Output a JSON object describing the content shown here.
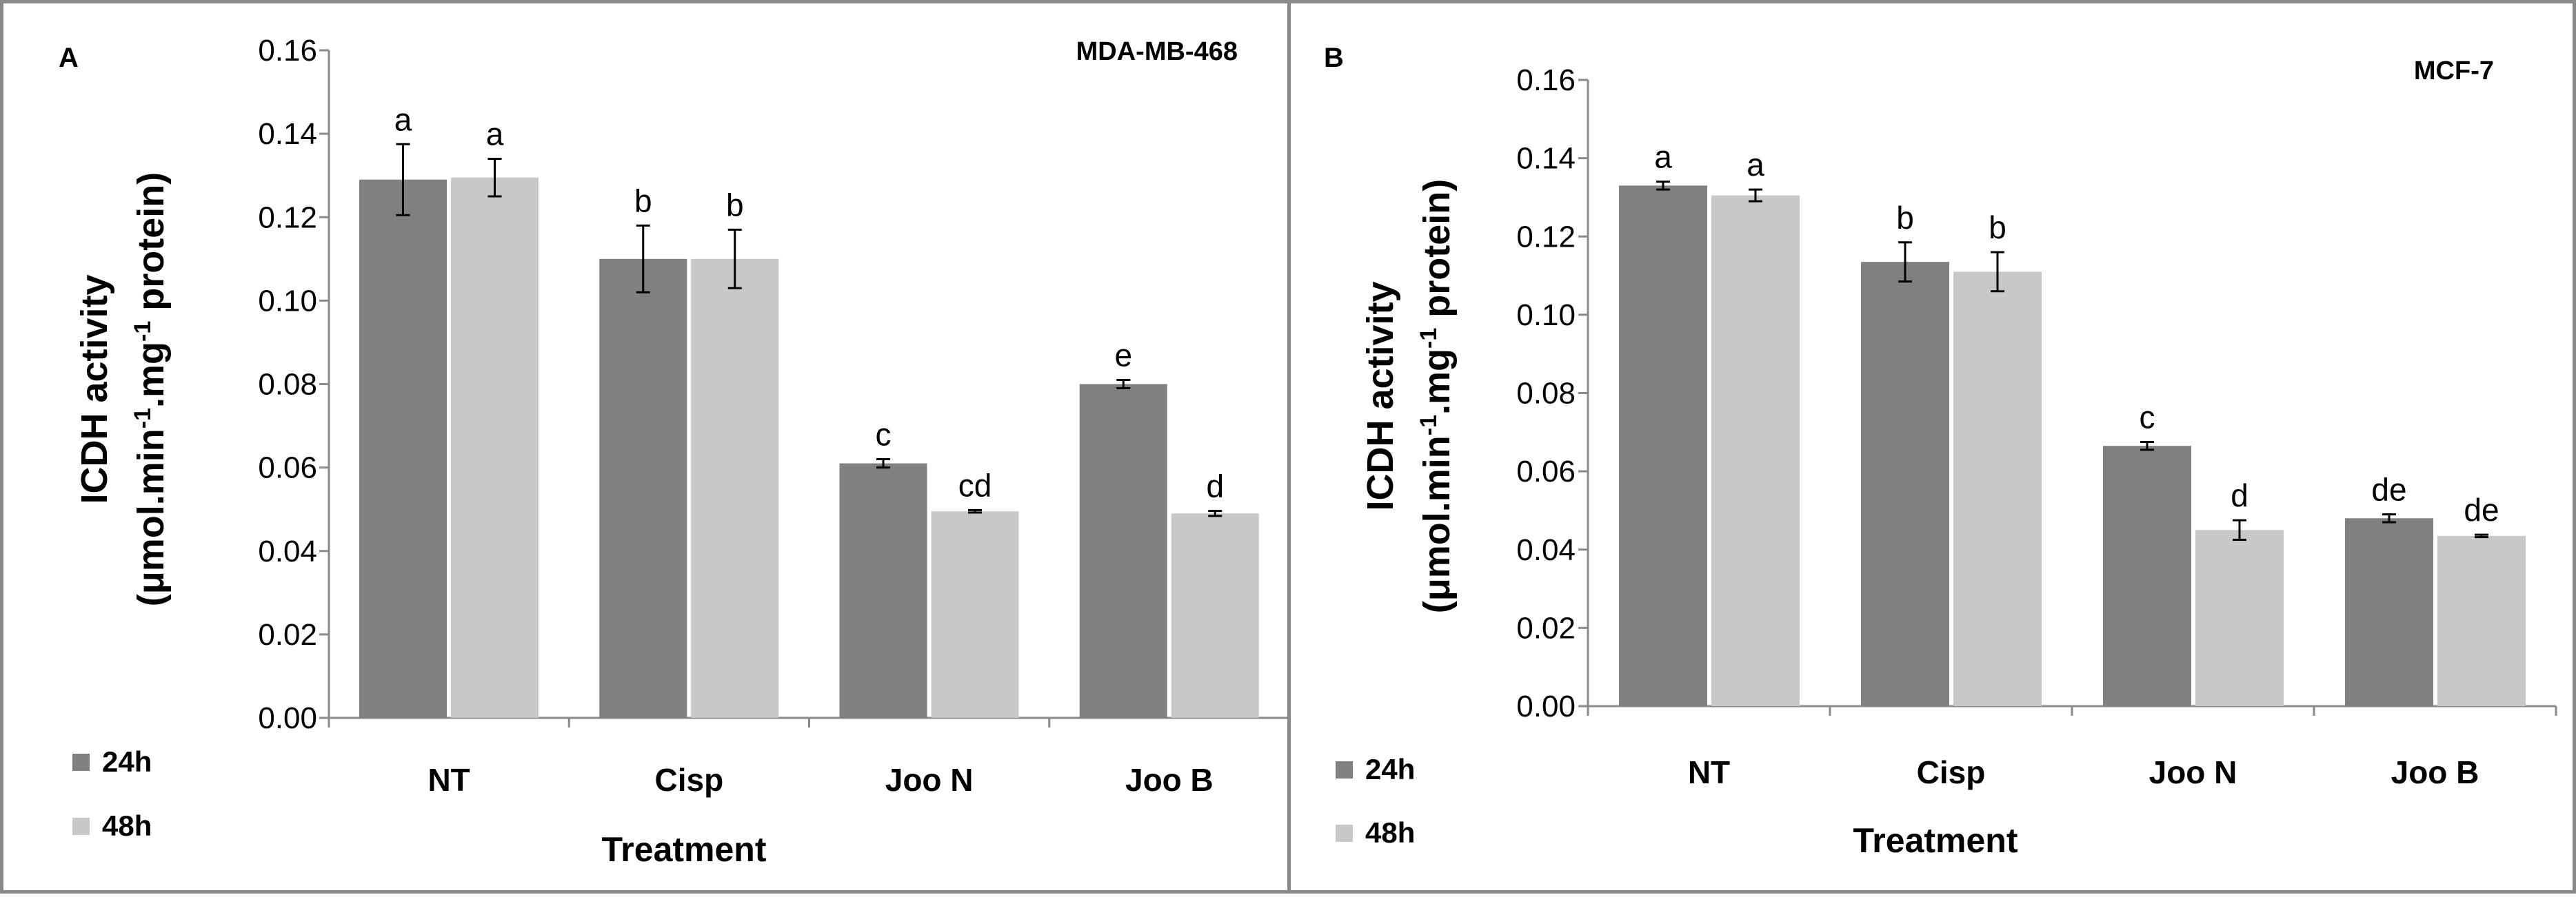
{
  "panels": [
    {
      "letter": "A",
      "title": "MDA-MB-468",
      "ylabel_line1": "ICDH activity",
      "ylabel_line2": "(μmol.min-1.mg-1 protein)",
      "xlabel": "Treatment",
      "y_ticks": [
        "0.00",
        "0.02",
        "0.04",
        "0.06",
        "0.08",
        "0.10",
        "0.12",
        "0.14",
        "0.16"
      ],
      "legend": [
        {
          "label": "24h",
          "color": "#808080"
        },
        {
          "label": "48h",
          "color": "#c8c8c8"
        }
      ]
    },
    {
      "letter": "B",
      "title": "MCF-7",
      "ylabel_line1": "ICDH activity",
      "ylabel_line2": "(μmol.min-1.mg-1 protein)",
      "xlabel": "Treatment",
      "y_ticks": [
        "0.00",
        "0.02",
        "0.04",
        "0.06",
        "0.08",
        "0.10",
        "0.12",
        "0.14",
        "0.16"
      ],
      "legend": [
        {
          "label": "24h",
          "color": "#808080"
        },
        {
          "label": "48h",
          "color": "#c8c8c8"
        }
      ]
    }
  ],
  "chart_data": [
    {
      "type": "bar",
      "title": "MDA-MB-468",
      "xlabel": "Treatment",
      "ylabel": "ICDH activity (μmol.min-1.mg-1 protein)",
      "ylim": [
        0,
        0.16
      ],
      "categories": [
        "NT",
        "Cisp",
        "Joo N",
        "Joo B"
      ],
      "series": [
        {
          "name": "24h",
          "color": "#808080",
          "values": [
            0.129,
            0.11,
            0.061,
            0.08
          ],
          "errors": [
            0.0085,
            0.008,
            0.001,
            0.001
          ],
          "letters": [
            "a",
            "b",
            "c",
            "e"
          ]
        },
        {
          "name": "48h",
          "color": "#c8c8c8",
          "values": [
            0.1295,
            0.11,
            0.0495,
            0.049
          ],
          "errors": [
            0.0045,
            0.007,
            0.0003,
            0.0006
          ],
          "letters": [
            "a",
            "b",
            "cd",
            "d"
          ]
        }
      ]
    },
    {
      "type": "bar",
      "title": "MCF-7",
      "xlabel": "Treatment",
      "ylabel": "ICDH activity (μmol.min-1.mg-1 protein)",
      "ylim": [
        0,
        0.16
      ],
      "categories": [
        "NT",
        "Cisp",
        "Joo N",
        "Joo B"
      ],
      "series": [
        {
          "name": "24h",
          "color": "#808080",
          "values": [
            0.133,
            0.1135,
            0.0665,
            0.048
          ],
          "errors": [
            0.001,
            0.005,
            0.001,
            0.001
          ],
          "letters": [
            "a",
            "b",
            "c",
            "de"
          ]
        },
        {
          "name": "48h",
          "color": "#c8c8c8",
          "values": [
            0.1305,
            0.111,
            0.045,
            0.0435
          ],
          "errors": [
            0.0015,
            0.005,
            0.0025,
            0.0003
          ],
          "letters": [
            "a",
            "b",
            "d",
            "de"
          ]
        }
      ]
    }
  ]
}
